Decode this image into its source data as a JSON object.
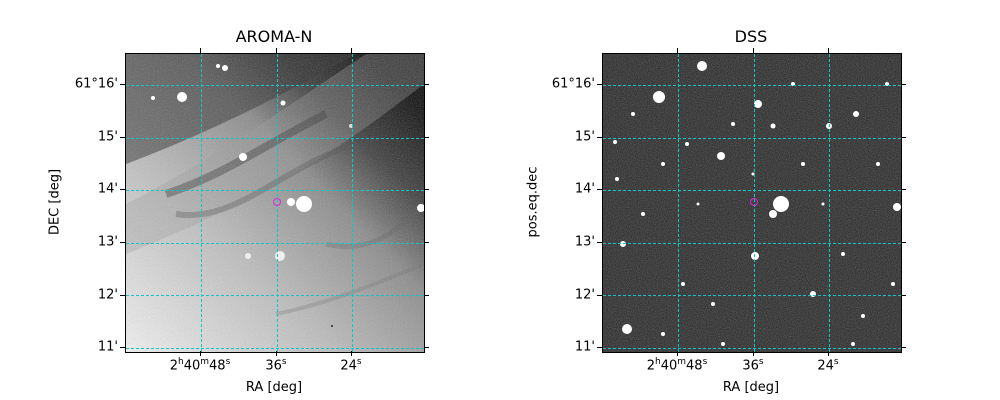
{
  "panels": [
    {
      "title": "AROMA-N",
      "xlabel": "RA [deg]",
      "ylabel": "DEC [deg]",
      "xticks": [
        {
          "h": "2",
          "m": "40",
          "s": "48",
          "full": true
        },
        {
          "s": "36",
          "full": false
        },
        {
          "s": "24",
          "full": false
        }
      ],
      "yticks": [
        "61°16'",
        "15'",
        "14'",
        "13'",
        "12'",
        "11'"
      ]
    },
    {
      "title": "DSS",
      "xlabel": "RA [deg]",
      "ylabel": "pos.eq.dec",
      "xticks": [
        {
          "h": "2",
          "m": "40",
          "s": "48",
          "full": true
        },
        {
          "s": "36",
          "full": false
        },
        {
          "s": "24",
          "full": false
        }
      ],
      "yticks": [
        "61°16'",
        "15'",
        "14'",
        "13'",
        "12'",
        "11'"
      ]
    }
  ],
  "colors": {
    "grid": "#17c3c3",
    "marker": "#d62bd6"
  }
}
